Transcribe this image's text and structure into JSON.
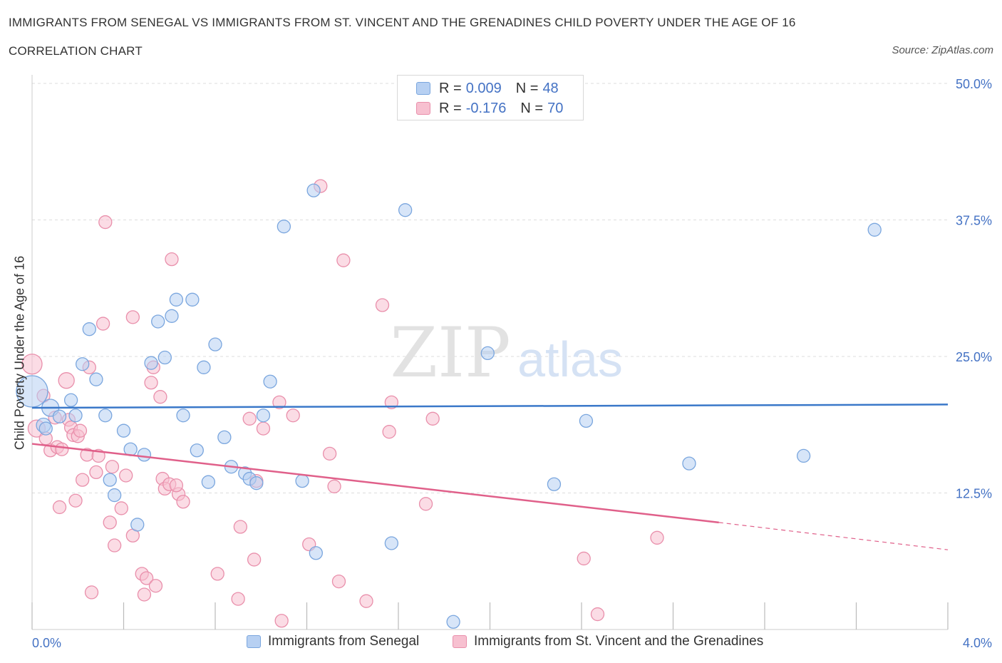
{
  "title": "IMMIGRANTS FROM SENEGAL VS IMMIGRANTS FROM ST. VINCENT AND THE GRENADINES CHILD POVERTY UNDER THE AGE OF 16",
  "subtitle": "CORRELATION CHART",
  "source": "Source: ZipAtlas.com",
  "watermark": {
    "zip": "ZIP",
    "atlas": "atlas"
  },
  "legend": {
    "rows": [
      {
        "r_label": "R =",
        "r_value": "0.009",
        "n_label": "N =",
        "n_value": "48"
      },
      {
        "r_label": "R =",
        "r_value": "-0.176",
        "n_label": "N =",
        "n_value": "70"
      }
    ]
  },
  "colors": {
    "senegal_fill": "#b7d0f2",
    "senegal_stroke": "#7aa6de",
    "senegal_line": "#3a78c9",
    "svg_fill": "#f7c0d0",
    "svg_stroke": "#e98fab",
    "svg_line": "#e0608a",
    "axis_label": "#4472c4",
    "grid": "#dddddd"
  },
  "chart_data": {
    "type": "scatter",
    "title": "IMMIGRANTS FROM SENEGAL VS IMMIGRANTS FROM ST. VINCENT AND THE GRENADINES CHILD POVERTY UNDER THE AGE OF 16",
    "subtitle": "CORRELATION CHART",
    "ylabel": "Child Poverty Under the Age of 16",
    "xlim": [
      0,
      4
    ],
    "ylim": [
      0,
      50
    ],
    "x_tick_labels": [
      "0.0%",
      "4.0%"
    ],
    "y_tick_labels": [
      "50.0%",
      "37.5%",
      "25.0%",
      "12.5%"
    ],
    "y_ticks": [
      50,
      37.5,
      25,
      12.5
    ],
    "legend_position": "top-center",
    "series": [
      {
        "name": "Immigrants from Senegal",
        "r": 0.009,
        "n": 48,
        "trend": {
          "x0": 0,
          "y0": 20.3,
          "x1": 4,
          "y1": 20.6
        },
        "points": [
          [
            0.0,
            21.8,
            22
          ],
          [
            0.08,
            20.3,
            12
          ],
          [
            0.05,
            18.7,
            10
          ],
          [
            0.17,
            21.0,
            9
          ],
          [
            0.12,
            19.5,
            9
          ],
          [
            0.19,
            19.6,
            9
          ],
          [
            0.22,
            24.3,
            9
          ],
          [
            0.25,
            27.5,
            9
          ],
          [
            0.28,
            22.9,
            9
          ],
          [
            0.32,
            19.6,
            9
          ],
          [
            0.34,
            13.7,
            9
          ],
          [
            0.36,
            12.3,
            9
          ],
          [
            0.4,
            18.2,
            9
          ],
          [
            0.43,
            16.5,
            9
          ],
          [
            0.46,
            9.6,
            9
          ],
          [
            0.49,
            16.0,
            9
          ],
          [
            0.52,
            24.4,
            9
          ],
          [
            0.55,
            28.2,
            9
          ],
          [
            0.58,
            24.9,
            9
          ],
          [
            0.61,
            28.7,
            9
          ],
          [
            0.63,
            30.2,
            9
          ],
          [
            0.66,
            19.6,
            9
          ],
          [
            0.7,
            30.2,
            9
          ],
          [
            0.72,
            16.4,
            9
          ],
          [
            0.75,
            24.0,
            9
          ],
          [
            0.77,
            13.5,
            9
          ],
          [
            0.8,
            26.1,
            9
          ],
          [
            0.84,
            17.6,
            9
          ],
          [
            0.87,
            14.9,
            9
          ],
          [
            0.93,
            14.3,
            9
          ],
          [
            0.95,
            13.8,
            9
          ],
          [
            0.98,
            13.4,
            9
          ],
          [
            1.01,
            19.6,
            9
          ],
          [
            1.04,
            22.7,
            9
          ],
          [
            1.1,
            36.9,
            9
          ],
          [
            1.18,
            13.6,
            9
          ],
          [
            1.23,
            40.2,
            9
          ],
          [
            1.24,
            7.0,
            9
          ],
          [
            1.57,
            7.9,
            9
          ],
          [
            1.63,
            38.4,
            9
          ],
          [
            1.84,
            0.7,
            9
          ],
          [
            1.99,
            25.3,
            9
          ],
          [
            2.28,
            13.3,
            9
          ],
          [
            2.42,
            19.1,
            9
          ],
          [
            2.87,
            15.2,
            9
          ],
          [
            3.37,
            15.9,
            9
          ],
          [
            3.68,
            36.6,
            9
          ],
          [
            0.06,
            18.4,
            9
          ]
        ]
      },
      {
        "name": "Immigrants from St. Vincent and the Grenadines",
        "r": -0.176,
        "n": 70,
        "trend": {
          "x0": 0,
          "y0": 17.0,
          "x1": 3.0,
          "y1": 9.8,
          "x1_dashed": 4,
          "y1_dashed": 7.3
        },
        "points": [
          [
            0.0,
            24.3,
            14
          ],
          [
            0.02,
            18.4,
            12
          ],
          [
            0.05,
            21.4,
            9
          ],
          [
            0.06,
            17.5,
            9
          ],
          [
            0.08,
            16.4,
            9
          ],
          [
            0.1,
            19.4,
            9
          ],
          [
            0.11,
            16.7,
            9
          ],
          [
            0.12,
            11.2,
            9
          ],
          [
            0.13,
            16.5,
            9
          ],
          [
            0.15,
            22.8,
            11
          ],
          [
            0.16,
            19.2,
            9
          ],
          [
            0.17,
            18.5,
            9
          ],
          [
            0.18,
            17.8,
            9
          ],
          [
            0.19,
            11.8,
            9
          ],
          [
            0.2,
            17.7,
            9
          ],
          [
            0.21,
            18.2,
            9
          ],
          [
            0.22,
            13.7,
            9
          ],
          [
            0.24,
            16.0,
            9
          ],
          [
            0.25,
            24.0,
            9
          ],
          [
            0.26,
            3.4,
            9
          ],
          [
            0.28,
            14.4,
            9
          ],
          [
            0.29,
            15.9,
            9
          ],
          [
            0.31,
            28.0,
            9
          ],
          [
            0.32,
            37.3,
            9
          ],
          [
            0.34,
            9.8,
            9
          ],
          [
            0.35,
            14.9,
            9
          ],
          [
            0.36,
            7.7,
            9
          ],
          [
            0.39,
            11.1,
            9
          ],
          [
            0.41,
            14.1,
            9
          ],
          [
            0.44,
            28.6,
            9
          ],
          [
            0.44,
            8.6,
            9
          ],
          [
            0.48,
            5.1,
            9
          ],
          [
            0.49,
            3.2,
            9
          ],
          [
            0.5,
            4.7,
            9
          ],
          [
            0.52,
            22.6,
            9
          ],
          [
            0.53,
            24.0,
            9
          ],
          [
            0.54,
            4.0,
            9
          ],
          [
            0.56,
            21.3,
            9
          ],
          [
            0.57,
            13.8,
            9
          ],
          [
            0.58,
            12.9,
            9
          ],
          [
            0.6,
            13.3,
            9
          ],
          [
            0.61,
            33.9,
            9
          ],
          [
            0.64,
            12.4,
            9
          ],
          [
            0.66,
            11.7,
            9
          ],
          [
            0.81,
            5.1,
            9
          ],
          [
            0.9,
            2.8,
            9
          ],
          [
            0.91,
            9.4,
            9
          ],
          [
            0.95,
            19.3,
            9
          ],
          [
            0.97,
            6.4,
            9
          ],
          [
            0.98,
            13.6,
            9
          ],
          [
            1.01,
            18.4,
            9
          ],
          [
            1.08,
            20.8,
            9
          ],
          [
            1.09,
            0.8,
            9
          ],
          [
            1.14,
            19.6,
            9
          ],
          [
            1.21,
            7.8,
            9
          ],
          [
            1.26,
            40.6,
            9
          ],
          [
            1.3,
            16.1,
            9
          ],
          [
            1.32,
            13.1,
            9
          ],
          [
            1.34,
            4.4,
            9
          ],
          [
            1.36,
            33.8,
            9
          ],
          [
            1.46,
            2.6,
            9
          ],
          [
            1.53,
            29.7,
            9
          ],
          [
            1.56,
            18.1,
            9
          ],
          [
            1.57,
            20.8,
            9
          ],
          [
            1.72,
            11.5,
            9
          ],
          [
            1.75,
            19.3,
            9
          ],
          [
            2.41,
            6.5,
            9
          ],
          [
            2.47,
            1.4,
            9
          ],
          [
            2.73,
            8.4,
            9
          ],
          [
            0.63,
            13.2,
            9
          ]
        ]
      }
    ]
  }
}
